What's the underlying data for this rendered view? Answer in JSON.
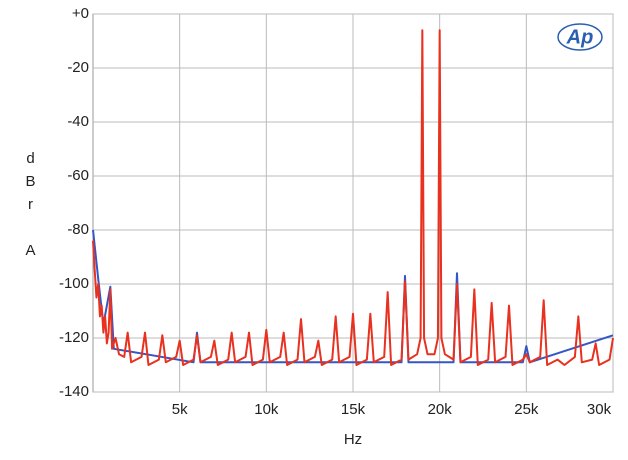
{
  "chart_data": {
    "type": "line",
    "ylabel": "dBr A",
    "xlabel": "Hz",
    "logo": "Ap",
    "xlim": [
      0,
      30000
    ],
    "ylim": [
      -140,
      0
    ],
    "xticks": [
      {
        "value": 5000,
        "label": "5k"
      },
      {
        "value": 10000,
        "label": "10k"
      },
      {
        "value": 15000,
        "label": "15k"
      },
      {
        "value": 20000,
        "label": "20k"
      },
      {
        "value": 25000,
        "label": "25k"
      },
      {
        "value": 30000,
        "label": "30k"
      }
    ],
    "yticks": [
      {
        "value": 0,
        "label": "+0"
      },
      -20,
      -40,
      -60,
      -80,
      -100,
      -120,
      -140
    ],
    "grid": true,
    "series": [
      {
        "color": "#3556c4",
        "x": [
          0,
          300,
          600,
          1000,
          1200,
          5800,
          6000,
          6200,
          17800,
          18000,
          18200,
          20800,
          21000,
          21200,
          24800,
          25000,
          25200,
          30000
        ],
        "values": [
          -80,
          -98,
          -115,
          -101,
          -124,
          -129,
          -118,
          -129,
          -129,
          -97,
          -129,
          -129,
          -96,
          -129,
          -129,
          -123,
          -129,
          -119
        ]
      },
      {
        "color": "#e8311f",
        "x": [
          0,
          100,
          200,
          300,
          400,
          500,
          600,
          700,
          800,
          900,
          1000,
          1100,
          1300,
          1500,
          1800,
          2000,
          2200,
          2800,
          3000,
          3200,
          3800,
          4000,
          4200,
          4800,
          5000,
          5200,
          5800,
          6000,
          6200,
          6800,
          7000,
          7200,
          7800,
          8000,
          8200,
          8800,
          9000,
          9200,
          9800,
          10000,
          10200,
          10800,
          11000,
          11200,
          11800,
          12000,
          12200,
          12800,
          13000,
          13200,
          13800,
          14000,
          14200,
          14800,
          15000,
          15200,
          15800,
          16000,
          16200,
          16800,
          17000,
          17200,
          17800,
          18000,
          18200,
          18700,
          18900,
          19000,
          19100,
          19300,
          19700,
          19900,
          20000,
          20100,
          20300,
          20800,
          21000,
          21200,
          21800,
          22000,
          22200,
          22800,
          23000,
          23200,
          23800,
          24000,
          24200,
          24800,
          25000,
          25200,
          25800,
          26000,
          26200,
          26800,
          27000,
          27200,
          27800,
          28000,
          28200,
          28800,
          29000,
          29200,
          29800,
          30000
        ],
        "values": [
          -84,
          -95,
          -105,
          -100,
          -112,
          -108,
          -118,
          -112,
          -122,
          -118,
          -102,
          -124,
          -120,
          -126,
          -127,
          -118,
          -129,
          -127,
          -118,
          -130,
          -128,
          -119,
          -129,
          -127,
          -121,
          -130,
          -128,
          -119,
          -129,
          -127,
          -121,
          -130,
          -128,
          -118,
          -129,
          -127,
          -118,
          -130,
          -128,
          -117,
          -129,
          -127,
          -118,
          -130,
          -128,
          -113,
          -129,
          -127,
          -121,
          -130,
          -128,
          -112,
          -129,
          -127,
          -111,
          -130,
          -128,
          -111,
          -129,
          -127,
          -103,
          -130,
          -128,
          -99,
          -128,
          -126,
          -120,
          -6,
          -120,
          -126,
          -126,
          -120,
          -6,
          -120,
          -126,
          -128,
          -100,
          -129,
          -127,
          -102,
          -130,
          -128,
          -107,
          -129,
          -127,
          -108,
          -130,
          -128,
          -126,
          -129,
          -127,
          -106,
          -130,
          -128,
          -129,
          -130,
          -127,
          -112,
          -129,
          -128,
          -122,
          -130,
          -128,
          -120
        ]
      }
    ]
  }
}
